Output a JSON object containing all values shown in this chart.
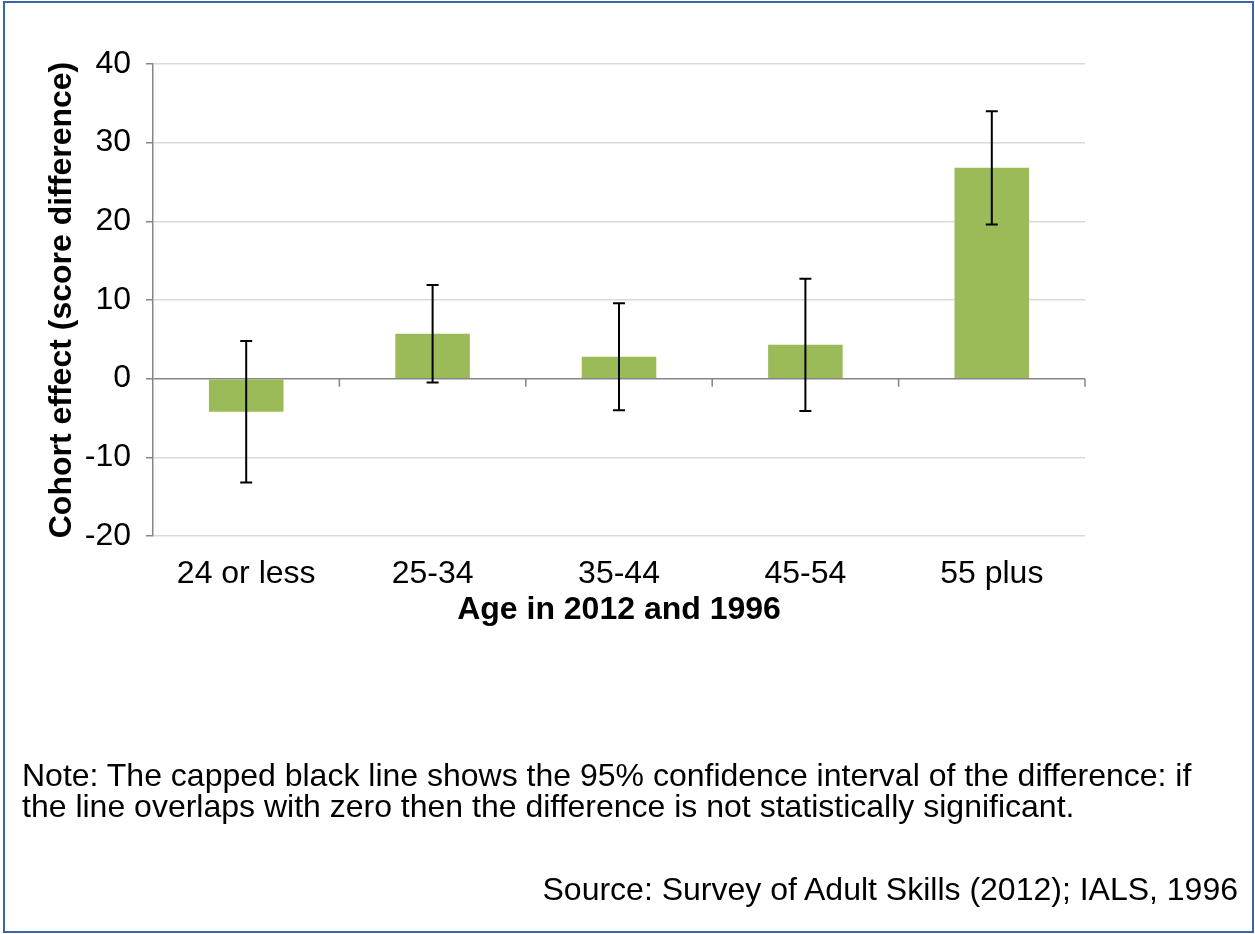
{
  "chart_data": {
    "type": "bar",
    "categories": [
      "24 or less",
      "25-34",
      "35-44",
      "45-54",
      "55 plus"
    ],
    "values": [
      -4.2,
      5.7,
      2.8,
      4.3,
      26.8
    ],
    "errors": [
      9.0,
      6.2,
      6.8,
      8.4,
      7.2
    ],
    "color": "#9bbb59",
    "xlabel": "Age in 2012 and 1996",
    "ylabel": "Cohort effect (score difference)",
    "ylim": [
      -20,
      40
    ],
    "yticks": [
      -20,
      -10,
      0,
      10,
      20,
      30,
      40
    ],
    "grid": "y",
    "annotations": [
      "Note: The capped black line shows the 95% confidence interval of the difference: if the line overlaps with zero then the difference is not statistically significant.",
      "Source: Survey of Adult Skills (2012); IALS, 1996"
    ]
  }
}
